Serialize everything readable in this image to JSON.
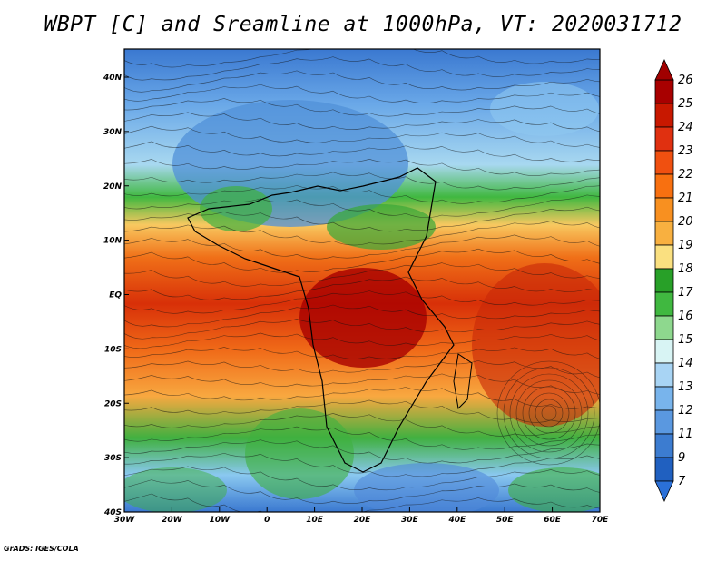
{
  "title": "WBPT [C] and Sreamline at 1000hPa, VT: 2020031712",
  "x_axis": {
    "ticks": [
      "30W",
      "20W",
      "10W",
      "0",
      "10E",
      "20E",
      "30E",
      "40E",
      "50E",
      "60E",
      "70E"
    ]
  },
  "y_axis": {
    "ticks": [
      "40N",
      "30N",
      "20N",
      "10N",
      "EQ",
      "10S",
      "20S",
      "30S",
      "40S"
    ]
  },
  "colorbar": {
    "labels": [
      "26",
      "25",
      "24",
      "23",
      "22",
      "21",
      "20",
      "19",
      "18",
      "17",
      "16",
      "15",
      "14",
      "13",
      "12",
      "11",
      "9",
      "7"
    ],
    "colors": [
      "#a80000",
      "#c81800",
      "#e03010",
      "#f05010",
      "#f87010",
      "#f89020",
      "#f8b040",
      "#fae080",
      "#28a028",
      "#40b840",
      "#8ed88e",
      "#d8f4f4",
      "#a8d4f4",
      "#78b4ec",
      "#5a98e0",
      "#3c7cd0",
      "#2060c0"
    ]
  },
  "credit": "GrADS: IGES/COLA"
}
